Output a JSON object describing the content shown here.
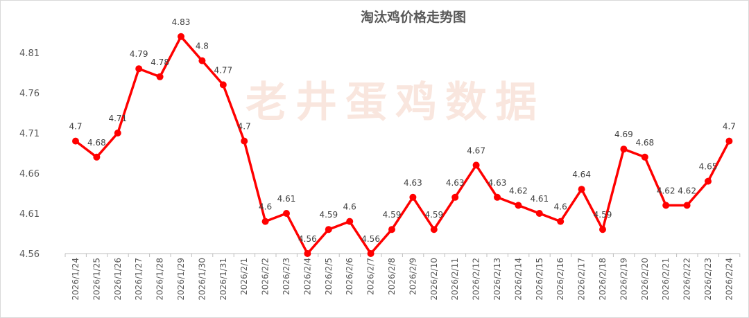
{
  "chart_data": {
    "type": "line",
    "title": "淘汰鸡价格走势图",
    "watermark": "老井蛋鸡数据",
    "xlabel": "",
    "ylabel": "",
    "categories": [
      "2026/1/24",
      "2026/1/25",
      "2026/1/26",
      "2026/1/27",
      "2026/1/28",
      "2026/1/29",
      "2026/1/30",
      "2026/1/31",
      "2026/2/1",
      "2026/2/2",
      "2026/2/3",
      "2026/2/4",
      "2026/2/5",
      "2026/2/6",
      "2026/2/7",
      "2026/2/8",
      "2026/2/9",
      "2026/2/10",
      "2026/2/11",
      "2026/2/12",
      "2026/2/13",
      "2026/2/14",
      "2026/2/15",
      "2026/2/16",
      "2026/2/17",
      "2026/2/18",
      "2026/2/19",
      "2026/2/20",
      "2026/2/21",
      "2026/2/22",
      "2026/2/23",
      "2026/2/24"
    ],
    "values": [
      4.7,
      4.68,
      4.71,
      4.79,
      4.78,
      4.83,
      4.8,
      4.77,
      4.7,
      4.6,
      4.61,
      4.56,
      4.59,
      4.6,
      4.56,
      4.59,
      4.63,
      4.59,
      4.63,
      4.67,
      4.63,
      4.62,
      4.61,
      4.6,
      4.64,
      4.59,
      4.69,
      4.68,
      4.62,
      4.62,
      4.65,
      4.7
    ],
    "ylim": [
      4.56,
      4.84
    ],
    "yticks": [
      4.56,
      4.61,
      4.66,
      4.71,
      4.76,
      4.81
    ],
    "yticks_text": [
      "4.56",
      "4.61",
      "4.66",
      "4.71",
      "4.76",
      "4.81"
    ],
    "grid": false,
    "legend": "none",
    "line_color": "#ff0000"
  }
}
